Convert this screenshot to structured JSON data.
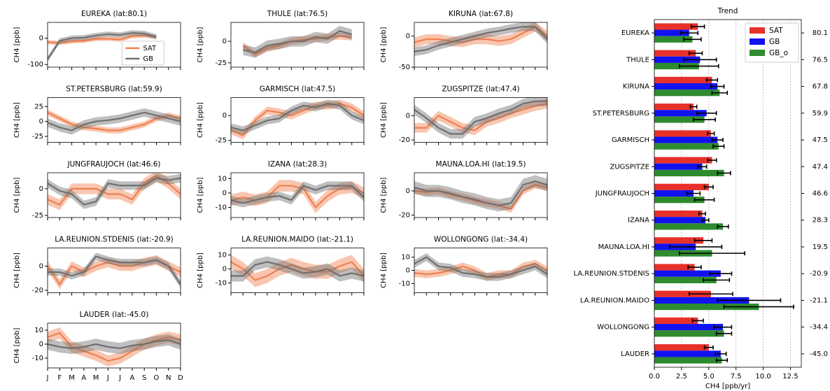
{
  "chart_data": [
    {
      "type": "line",
      "title": "EUREKA (lat:80.1)",
      "ylabel": "CH4  [ppb]",
      "ylim": [
        -110,
        60
      ],
      "yticks": [
        -100,
        0
      ],
      "legend": "lower right",
      "series": [
        {
          "name": "SAT",
          "color": "#f08050",
          "spread": 8,
          "values": [
            -15,
            -18,
            -12,
            -10,
            -3,
            -2,
            -5,
            8,
            10,
            5,
            null,
            null
          ]
        },
        {
          "name": "GB",
          "color": "#707070",
          "spread": 10,
          "values": [
            -80,
            -10,
            0,
            2,
            10,
            15,
            12,
            20,
            18,
            5,
            null,
            null
          ]
        }
      ]
    },
    {
      "type": "line",
      "title": "THULE (lat:76.5)",
      "ylabel": "CH4  [ppb]",
      "ylim": [
        -30,
        22
      ],
      "yticks": [
        -25,
        0
      ],
      "series": [
        {
          "color": "#f08050",
          "spread": 4,
          "values": [
            null,
            -5,
            -15,
            -8,
            -5,
            0,
            2,
            3,
            5,
            6,
            5,
            null
          ]
        },
        {
          "color": "#707070",
          "spread": 6,
          "values": [
            null,
            -10,
            -13,
            -5,
            -3,
            0,
            0,
            5,
            3,
            12,
            8,
            null
          ]
        }
      ]
    },
    {
      "type": "line",
      "title": "KIRUNA (lat:67.8)",
      "ylabel": "CH4  [ppb]",
      "ylim": [
        -50,
        22
      ],
      "yticks": [
        -50,
        0
      ],
      "series": [
        {
          "color": "#f08050",
          "spread": 8,
          "values": [
            -10,
            -5,
            -5,
            -8,
            -10,
            -5,
            -5,
            -8,
            -5,
            5,
            15,
            0
          ]
        },
        {
          "color": "#707070",
          "spread": 7,
          "values": [
            -25,
            -22,
            -15,
            -10,
            -5,
            0,
            5,
            8,
            12,
            15,
            15,
            -5
          ]
        }
      ]
    },
    {
      "type": "line",
      "title": "ST.PETERSBURG (lat:59.9)",
      "ylabel": "CH4  [ppb]",
      "ylim": [
        -35,
        40
      ],
      "yticks": [
        -25,
        0,
        25
      ],
      "series": [
        {
          "color": "#f08050",
          "spread": 5,
          "values": [
            15,
            5,
            -5,
            -10,
            -12,
            -15,
            -15,
            -10,
            -5,
            5,
            10,
            5
          ]
        },
        {
          "color": "#707070",
          "spread": 7,
          "values": [
            -2,
            -10,
            -15,
            -5,
            0,
            2,
            5,
            10,
            15,
            10,
            5,
            0
          ]
        }
      ]
    },
    {
      "type": "line",
      "title": "GARMISCH (lat:47.5)",
      "ylabel": "CH4  [ppb]",
      "ylim": [
        -27,
        18
      ],
      "yticks": [
        -25,
        0
      ],
      "series": [
        {
          "color": "#f08050",
          "spread": 4,
          "values": [
            -15,
            -20,
            -5,
            5,
            3,
            0,
            5,
            10,
            10,
            12,
            8,
            0
          ]
        },
        {
          "color": "#707070",
          "spread": 4,
          "values": [
            -12,
            -15,
            -10,
            -5,
            -3,
            5,
            10,
            8,
            12,
            10,
            0,
            -5
          ]
        }
      ]
    },
    {
      "type": "line",
      "title": "ZUGSPITZE (lat:47.4)",
      "ylabel": "CH4  [ppb]",
      "ylim": [
        -22,
        15
      ],
      "yticks": [
        -20,
        0
      ],
      "series": [
        {
          "color": "#f08050",
          "spread": 4,
          "values": [
            -10,
            -10,
            0,
            -5,
            -10,
            -12,
            -5,
            -2,
            2,
            5,
            8,
            10
          ]
        },
        {
          "color": "#707070",
          "spread": 4,
          "values": [
            5,
            -2,
            -10,
            -15,
            -15,
            -5,
            -2,
            2,
            5,
            10,
            12,
            12
          ]
        }
      ]
    },
    {
      "type": "line",
      "title": "JUNGFRAUJOCH (lat:46.6)",
      "ylabel": "CH4  [ppb]",
      "ylim": [
        -27,
        15
      ],
      "yticks": [
        -25,
        0
      ],
      "series": [
        {
          "color": "#f08050",
          "spread": 5,
          "values": [
            -10,
            -15,
            0,
            0,
            0,
            -5,
            -5,
            -10,
            5,
            12,
            5,
            -5
          ]
        },
        {
          "color": "#707070",
          "spread": 4,
          "values": [
            5,
            -2,
            -5,
            -15,
            -12,
            5,
            3,
            3,
            3,
            10,
            8,
            10
          ]
        }
      ]
    },
    {
      "type": "line",
      "title": "IZANA (lat:28.3)",
      "ylabel": "CH4  [ppb]",
      "ylim": [
        -17,
        14
      ],
      "yticks": [
        -10,
        0,
        10
      ],
      "series": [
        {
          "color": "#f08050",
          "spread": 4,
          "values": [
            -5,
            -3,
            -5,
            -3,
            5,
            5,
            3,
            -10,
            -2,
            3,
            4,
            0
          ]
        },
        {
          "color": "#707070",
          "spread": 3,
          "values": [
            -5,
            -7,
            -5,
            -3,
            -2,
            -5,
            5,
            2,
            5,
            5,
            5,
            -3
          ]
        }
      ]
    },
    {
      "type": "line",
      "title": "MAUNA.LOA.HI (lat:19.5)",
      "ylabel": "CH4  [ppb]",
      "ylim": [
        -22,
        15
      ],
      "yticks": [
        -20,
        0
      ],
      "series": [
        {
          "color": "#f08050",
          "spread": 3,
          "values": [
            0,
            -1,
            0,
            -3,
            -5,
            -8,
            -10,
            -12,
            -15,
            0,
            5,
            3
          ]
        },
        {
          "color": "#707070",
          "spread": 5,
          "values": [
            3,
            0,
            0,
            -2,
            -5,
            -7,
            -10,
            -12,
            -10,
            5,
            8,
            5
          ]
        }
      ]
    },
    {
      "type": "line",
      "title": "LA.REUNION.STDENIS (lat:-20.9)",
      "ylabel": "CH4  [ppb]",
      "ylim": [
        -22,
        15
      ],
      "yticks": [
        -20,
        0
      ],
      "series": [
        {
          "color": "#f08050",
          "spread": 4,
          "values": [
            0,
            -15,
            0,
            -5,
            0,
            3,
            0,
            0,
            3,
            5,
            0,
            -5
          ]
        },
        {
          "color": "#707070",
          "spread": 3,
          "values": [
            -5,
            -5,
            -8,
            -5,
            8,
            5,
            3,
            3,
            3,
            5,
            0,
            -15
          ]
        }
      ]
    },
    {
      "type": "line",
      "title": "LA.REUNION.MAIDO (lat:-21.1)",
      "ylabel": "CH4  [ppb]",
      "ylim": [
        -17,
        15
      ],
      "yticks": [
        -10,
        0,
        10
      ],
      "series": [
        {
          "color": "#f08050",
          "spread": 5,
          "values": [
            5,
            0,
            -8,
            -5,
            0,
            3,
            0,
            -2,
            -2,
            2,
            5,
            -5
          ]
        },
        {
          "color": "#707070",
          "spread": 4,
          "values": [
            -5,
            -5,
            3,
            5,
            3,
            0,
            -3,
            -2,
            0,
            -5,
            -3,
            -5
          ]
        }
      ]
    },
    {
      "type": "line",
      "title": "WOLLONGONG (lat:-34.4)",
      "ylabel": "CH4  [ppb]",
      "ylim": [
        -17,
        17
      ],
      "yticks": [
        -10,
        0,
        10
      ],
      "series": [
        {
          "color": "#f08050",
          "spread": 3,
          "values": [
            -2,
            -3,
            -2,
            0,
            3,
            0,
            -5,
            -3,
            -3,
            3,
            5,
            0
          ]
        },
        {
          "color": "#707070",
          "spread": 3,
          "values": [
            5,
            10,
            3,
            2,
            -2,
            -3,
            -5,
            -5,
            -3,
            0,
            3,
            -3
          ]
        }
      ]
    },
    {
      "type": "line",
      "title": "LAUDER (lat:-45.0)",
      "ylabel": "CH4  [ppb]",
      "ylim": [
        -17,
        15
      ],
      "yticks": [
        -10,
        0,
        10
      ],
      "categories": [
        "J",
        "F",
        "M",
        "A",
        "M",
        "J",
        "J",
        "A",
        "S",
        "O",
        "N",
        "D"
      ],
      "series": [
        {
          "color": "#f08050",
          "spread": 4,
          "values": [
            5,
            8,
            -2,
            -5,
            -8,
            -12,
            -10,
            -5,
            0,
            3,
            5,
            3
          ]
        },
        {
          "color": "#707070",
          "spread": 4,
          "values": [
            0,
            -2,
            -3,
            -2,
            0,
            -2,
            -3,
            -1,
            0,
            2,
            3,
            0
          ]
        }
      ]
    },
    {
      "type": "bar",
      "orientation": "horizontal",
      "title": "Trend",
      "xlabel": "CH4 [ppb/yr]",
      "legend": "upper right",
      "grid": true,
      "categories": [
        "EUREKA",
        "THULE",
        "KIRUNA",
        "ST.PETERSBURG",
        "GARMISCH",
        "ZUGSPITZE",
        "JUNGFRAUJOCH",
        "IZANA",
        "MAUNA.LOA.HI",
        "LA.REUNION.STDENIS",
        "LA.REUNION.MAIDO",
        "WOLLONGONG",
        "LAUDER"
      ],
      "y2_labels": [
        "80.1",
        "76.5",
        "67.8",
        "59.9",
        "47.5",
        "47.4",
        "46.6",
        "28.3",
        "19.5",
        "-20.9",
        "-21.1",
        "-34.4",
        "-45.0"
      ],
      "xlim": [
        0,
        13.5
      ],
      "xticks": [
        {
          "value": 0,
          "label": "0.0"
        },
        {
          "value": 2.5,
          "label": "2.5"
        },
        {
          "value": 5,
          "label": "5.0"
        },
        {
          "value": 7.5,
          "label": "7.5"
        },
        {
          "value": 10,
          "label": "10.0"
        },
        {
          "value": 12.5,
          "label": "12.5"
        }
      ],
      "series": [
        {
          "name": "SAT",
          "color": "#e8302a",
          "values": [
            4.0,
            3.8,
            5.3,
            3.6,
            5.2,
            5.3,
            5.0,
            4.4,
            4.5,
            3.7,
            5.2,
            4.0,
            5.0
          ],
          "errors": [
            0.6,
            0.6,
            0.5,
            0.3,
            0.3,
            0.4,
            0.4,
            0.3,
            0.8,
            0.6,
            2.0,
            0.5,
            0.4
          ]
        },
        {
          "name": "GB",
          "color": "#1212f0",
          "values": [
            3.2,
            4.2,
            5.8,
            4.8,
            5.8,
            4.4,
            3.6,
            4.7,
            3.8,
            6.1,
            8.7,
            6.3,
            6.1
          ],
          "errors": [
            0.8,
            1.5,
            0.6,
            0.9,
            0.5,
            0.4,
            0.6,
            0.3,
            2.4,
            1.0,
            2.9,
            0.8,
            0.5
          ]
        },
        {
          "name": "GB_o",
          "color": "#2e8b2e",
          "values": [
            3.5,
            4.1,
            6.0,
            4.6,
            5.9,
            6.4,
            4.6,
            6.3,
            5.3,
            5.7,
            9.6,
            6.4,
            6.2
          ],
          "errors": [
            0.8,
            1.8,
            0.7,
            1.0,
            0.5,
            0.6,
            0.9,
            0.5,
            3.0,
            1.2,
            3.2,
            0.7,
            0.5
          ]
        }
      ]
    }
  ]
}
